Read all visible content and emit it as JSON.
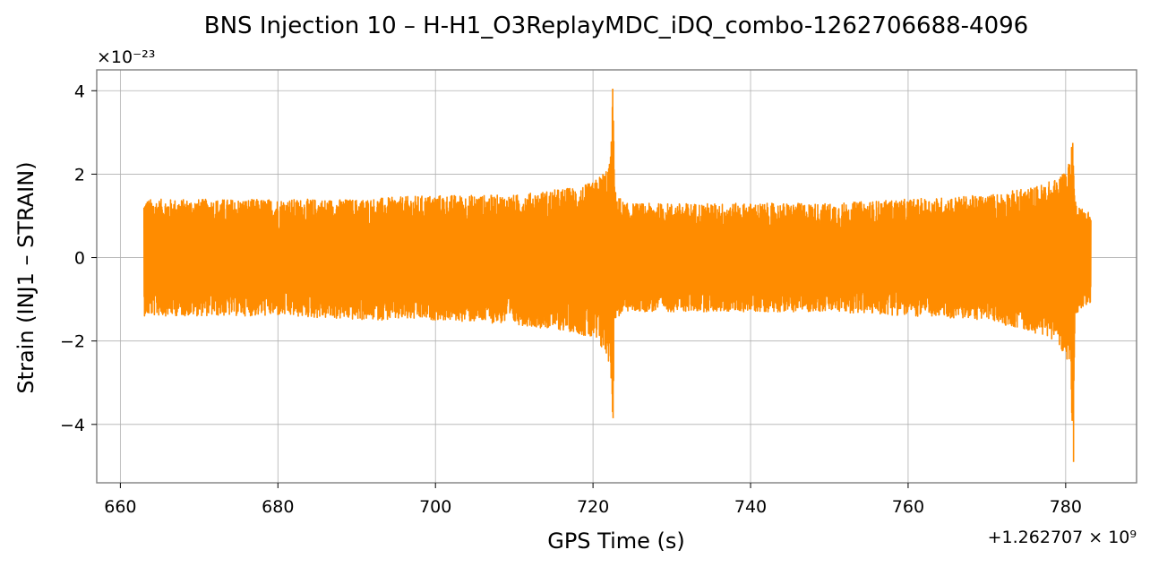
{
  "chart_data": {
    "type": "line",
    "title": "BNS Injection 10 – H-H1_O3ReplayMDC_iDQ_combo-1262706688-4096",
    "xlabel": "GPS Time (s)",
    "ylabel": "Strain (INJ1 – STRAIN)",
    "x_offset_label": "+1.262707 × 10⁹",
    "y_scale_label": "×10⁻²³",
    "x_offset": 1262707000,
    "y_scale": 1e-23,
    "xlim": [
      657,
      789
    ],
    "ylim": [
      -5.4,
      4.5
    ],
    "x_ticks": [
      660,
      680,
      700,
      720,
      740,
      760,
      780
    ],
    "y_ticks": [
      -4,
      -2,
      0,
      2,
      4
    ],
    "x_tick_labels": [
      "660",
      "680",
      "700",
      "720",
      "740",
      "760",
      "780"
    ],
    "y_tick_labels": [
      "−4",
      "−2",
      "0",
      "2",
      "4"
    ],
    "grid": true,
    "legend": "none",
    "series": [
      {
        "color": "#ff8c00",
        "x_start": 663.0,
        "x_end": 783.2,
        "envelope_x": [
          663,
          670,
          680,
          690,
          700,
          710,
          718,
          720,
          721.5,
          722.2,
          722.5,
          722.8,
          724,
          730,
          740,
          750,
          760,
          770,
          776,
          779,
          780.4,
          780.9,
          781.2,
          782,
          783.2
        ],
        "envelope_upper": [
          1.4,
          1.4,
          1.4,
          1.4,
          1.5,
          1.5,
          1.7,
          1.8,
          2.1,
          2.3,
          4.1,
          1.6,
          1.3,
          1.3,
          1.3,
          1.3,
          1.4,
          1.5,
          1.7,
          1.9,
          2.3,
          2.8,
          1.4,
          1.2,
          1.1
        ],
        "envelope_lower": [
          -1.4,
          -1.4,
          -1.4,
          -1.5,
          -1.5,
          -1.6,
          -1.8,
          -2.0,
          -2.3,
          -2.6,
          -3.9,
          -1.5,
          -1.3,
          -1.3,
          -1.3,
          -1.3,
          -1.4,
          -1.5,
          -1.8,
          -2.0,
          -2.6,
          -4.9,
          -1.4,
          -1.2,
          -1.1
        ],
        "peaks": [
          {
            "x": 722.5,
            "y": 4.05
          },
          {
            "x": 722.55,
            "y": -3.85
          },
          {
            "x": 780.9,
            "y": 2.75
          },
          {
            "x": 781.0,
            "y": -4.9
          }
        ]
      }
    ]
  }
}
